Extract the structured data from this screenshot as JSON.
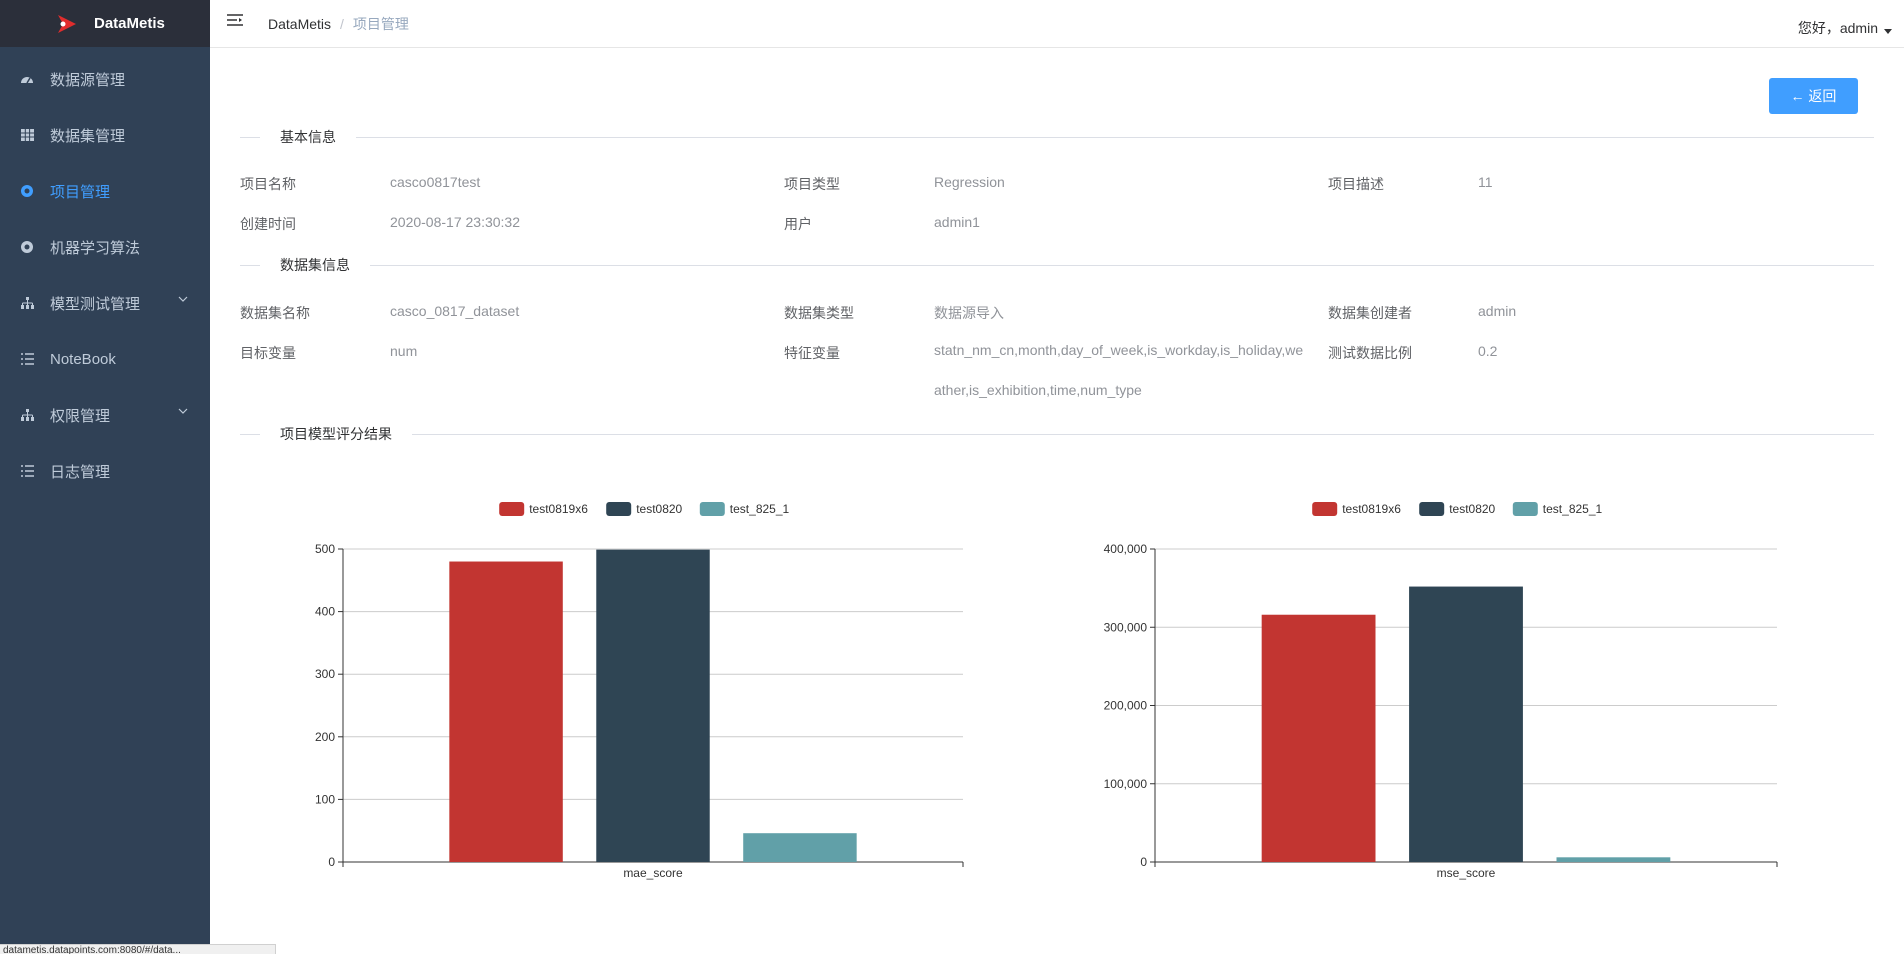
{
  "app": {
    "logo_text": "DataMetis"
  },
  "sidebar": {
    "items": [
      {
        "label": "数据源管理",
        "icon": "dashboard-icon"
      },
      {
        "label": "数据集管理",
        "icon": "table-icon"
      },
      {
        "label": "项目管理",
        "icon": "project-icon",
        "active": true
      },
      {
        "label": "机器学习算法",
        "icon": "algorithm-icon"
      },
      {
        "label": "模型测试管理",
        "icon": "tree-icon",
        "expandable": true
      },
      {
        "label": "NoteBook",
        "icon": "list-icon"
      },
      {
        "label": "权限管理",
        "icon": "tree-icon",
        "expandable": true
      },
      {
        "label": "日志管理",
        "icon": "list-icon"
      }
    ]
  },
  "header": {
    "breadcrumb_home": "DataMetis",
    "breadcrumb_sep": "/",
    "breadcrumb_current": "项目管理",
    "user_greeting": "您好，admin"
  },
  "actions": {
    "back_label": "← 返回"
  },
  "basic_info": {
    "title": "基本信息",
    "project_name_label": "项目名称",
    "project_name": "casco0817test",
    "project_type_label": "项目类型",
    "project_type": "Regression",
    "project_desc_label": "项目描述",
    "project_desc": "11",
    "created_label": "创建时间",
    "created": "2020-08-17 23:30:32",
    "user_label": "用户",
    "user": "admin1"
  },
  "dataset_info": {
    "title": "数据集信息",
    "name_label": "数据集名称",
    "name": "casco_0817_dataset",
    "type_label": "数据集类型",
    "type": "数据源导入",
    "creator_label": "数据集创建者",
    "creator": "admin",
    "target_label": "目标变量",
    "target": "num",
    "features_label": "特征变量",
    "features": "statn_nm_cn,month,day_of_week,is_workday,is_holiday,weather,is_exhibition,time,num_type",
    "test_ratio_label": "测试数据比例",
    "test_ratio": "0.2"
  },
  "results": {
    "title": "项目模型评分结果"
  },
  "status_bar": {
    "text": "datametis.datapoints.com:8080/#/data..."
  },
  "colors": {
    "sidebar_bg": "#304156",
    "accent": "#409eff",
    "series": [
      "#c23531",
      "#2f4554",
      "#61a0a8"
    ]
  },
  "chart_data": [
    {
      "type": "bar",
      "categories": [
        "mae_score"
      ],
      "series": [
        {
          "name": "test0819x6",
          "values": [
            480
          ]
        },
        {
          "name": "test0820",
          "values": [
            499
          ]
        },
        {
          "name": "test_825_1",
          "values": [
            46
          ]
        }
      ],
      "ylim": [
        0,
        500
      ],
      "yticks": [
        0,
        100,
        200,
        300,
        400,
        500
      ],
      "ytick_labels": [
        "0",
        "100",
        "200",
        "300",
        "400",
        "500"
      ],
      "grid": true,
      "legend": "top-center"
    },
    {
      "type": "bar",
      "categories": [
        "mse_score"
      ],
      "series": [
        {
          "name": "test0819x6",
          "values": [
            316000
          ]
        },
        {
          "name": "test0820",
          "values": [
            352000
          ]
        },
        {
          "name": "test_825_1",
          "values": [
            6000
          ]
        }
      ],
      "ylim": [
        0,
        400000
      ],
      "yticks": [
        0,
        100000,
        200000,
        300000,
        400000
      ],
      "ytick_labels": [
        "0",
        "100,000",
        "200,000",
        "300,000",
        "400,000"
      ],
      "grid": true,
      "legend": "top-center"
    }
  ]
}
